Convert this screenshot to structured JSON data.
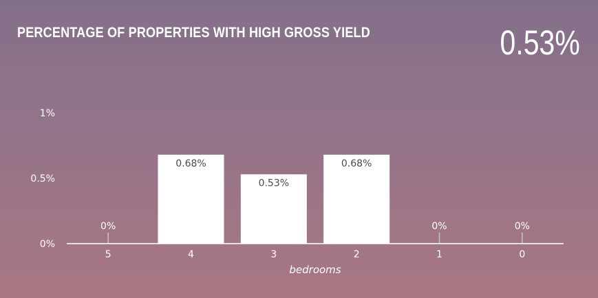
{
  "header": {
    "title": "PERCENTAGE OF PROPERTIES WITH HIGH GROSS YIELD",
    "headline_value": "0.53%"
  },
  "chart_data": {
    "type": "bar",
    "categories": [
      "5",
      "4",
      "3",
      "2",
      "1",
      "0"
    ],
    "values": [
      0,
      0.68,
      0.53,
      0.68,
      0,
      0
    ],
    "data_labels": [
      "0%",
      "0.68%",
      "0.53%",
      "0.68%",
      "0%",
      "0%"
    ],
    "xlabel": "bedrooms",
    "ylabel": "",
    "ylim": [
      0,
      1
    ],
    "yticks": [
      0,
      0.5,
      1
    ],
    "ytick_labels": [
      "0%",
      "0.5%",
      "1%"
    ],
    "grid": false,
    "bar_color": "#ffffff"
  },
  "colors": {
    "background_top": "#836f8a",
    "background_bottom": "#a87782",
    "text": "#ffffff",
    "data_label": "#4a4a4a"
  }
}
